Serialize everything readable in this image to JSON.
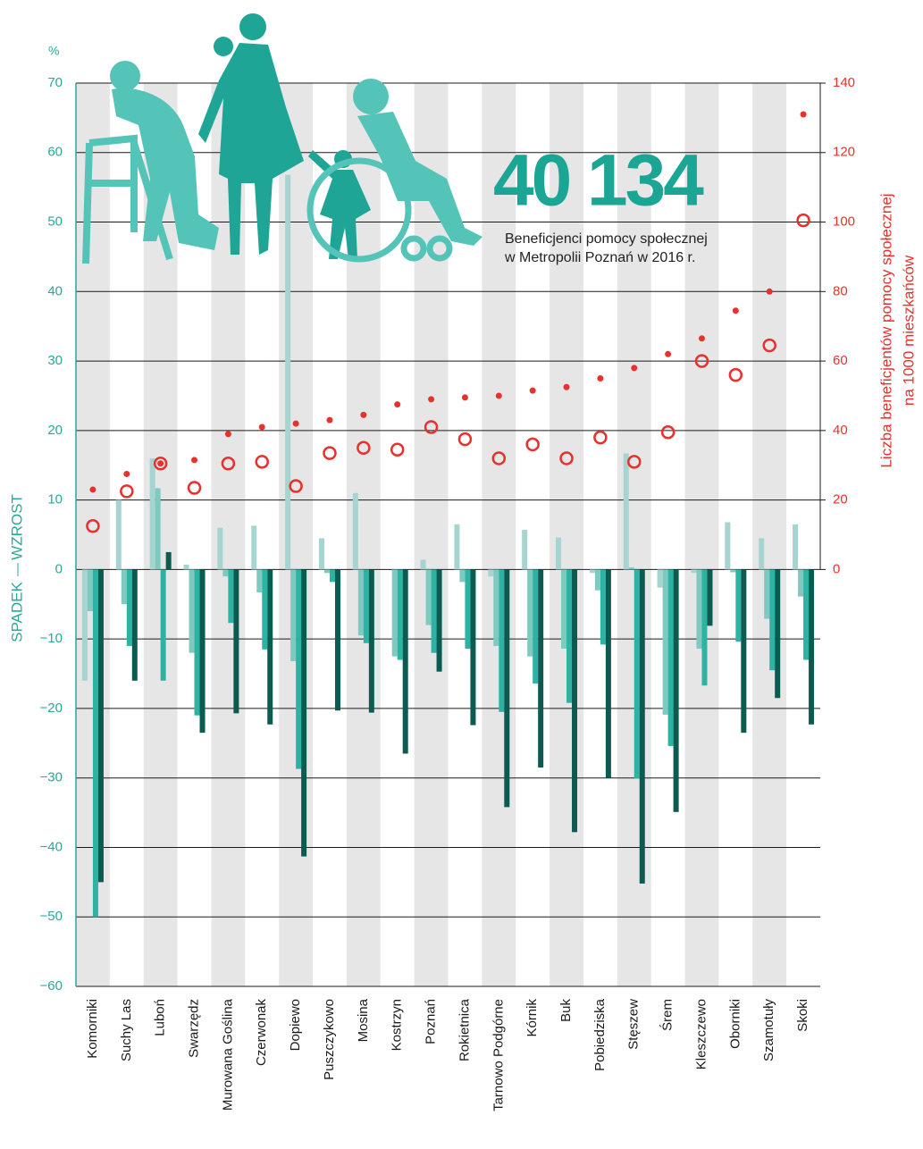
{
  "chart_data": {
    "type": "bar",
    "headline": "40 134",
    "subtitle": [
      "Beneficjenci pomocy społecznej",
      "w Metropolii Poznań w 2016 r."
    ],
    "y_unit": "%",
    "ylabel": [
      "SPADEK",
      "WZROST"
    ],
    "y2label": [
      "Liczba beneficjentów pomocy społecznej",
      "na 1000 mieszkańców"
    ],
    "categories": [
      "Komorniki",
      "Suchy Las",
      "Luboń",
      "Swarzędz",
      "Murowana Goślina",
      "Czerwonak",
      "Dopiewo",
      "Puszczykowo",
      "Mosina",
      "Kostrzyn",
      "Poznań",
      "Rokietnica",
      "Tarnowo Podgórne",
      "Kórnik",
      "Buk",
      "Pobiedziska",
      "Stęszew",
      "Śrem",
      "Kleszczewo",
      "Oborniki",
      "Szamotuły",
      "Skoki"
    ],
    "series": [
      {
        "type": "bar",
        "color": "#a6d4d0",
        "values": [
          -16,
          10,
          16,
          0.7,
          6,
          6.3,
          56.8,
          4.5,
          11,
          0,
          1.4,
          6.5,
          -1,
          5.7,
          4.6,
          -0.5,
          16.7,
          -2.6,
          -0.5,
          6.8,
          4.5,
          6.5
        ]
      },
      {
        "type": "bar",
        "color": "#7ec9c0",
        "values": [
          -6,
          -5,
          11.7,
          -12,
          -1,
          -3.3,
          -13.2,
          -0.5,
          -9.5,
          -12.5,
          -8,
          -1.8,
          -11,
          -12.5,
          -11.4,
          -3,
          0.3,
          -20.9,
          -11.4,
          -0.4,
          -7.1,
          -3.9
        ]
      },
      {
        "type": "bar",
        "color": "#2db3a3",
        "values": [
          -50,
          -11,
          -16,
          -21,
          -7.7,
          -11.5,
          -28.7,
          -1.8,
          -10.6,
          -13,
          -12,
          -11.4,
          -20.5,
          -16.4,
          -19.2,
          -10.8,
          -30.1,
          -25.4,
          -16.7,
          -10.4,
          -14.5,
          -13
        ]
      },
      {
        "type": "bar",
        "color": "#0b5b51",
        "values": [
          -45,
          -16,
          2.5,
          -23.5,
          -20.7,
          -22.3,
          -41.3,
          -20.3,
          -20.6,
          -26.5,
          -14.7,
          -22.4,
          -34.2,
          -28.5,
          -37.8,
          -30,
          -45.2,
          -34.9,
          -8.1,
          -23.5,
          -18.5,
          -22.3
        ]
      },
      {
        "type": "scatter",
        "marker": "filled",
        "axis": "y2",
        "color": "#e8312d",
        "values": [
          23,
          27.5,
          30.5,
          31.5,
          39,
          41,
          42,
          43,
          44.5,
          47.5,
          49,
          49.5,
          50,
          51.5,
          52.5,
          55,
          58,
          62,
          66.5,
          74.5,
          80,
          131
        ]
      },
      {
        "type": "scatter",
        "marker": "open",
        "axis": "y2",
        "color": "#e8312d",
        "values": [
          12.5,
          22.5,
          30.5,
          23.5,
          30.5,
          31,
          24,
          33.5,
          35,
          34.5,
          41,
          37.5,
          32,
          36,
          32,
          38,
          31,
          39.5,
          60,
          56,
          64.5,
          100.5
        ]
      }
    ],
    "ylim": [
      -60,
      70
    ],
    "yticks": [
      70,
      60,
      50,
      40,
      30,
      20,
      10,
      0,
      {
        "value": -10,
        "label": "−10"
      },
      {
        "value": -20,
        "label": "−20"
      },
      {
        "value": -30,
        "label": "−30"
      },
      {
        "value": -40,
        "label": "−40"
      },
      {
        "value": -50,
        "label": "−50"
      },
      {
        "value": -60,
        "label": "−60"
      }
    ],
    "y2lim": [
      0,
      140
    ],
    "y2ticks": [
      0,
      20,
      40,
      60,
      80,
      100,
      120,
      140
    ],
    "axis_color": "#2aa898",
    "y2_color": "#e8312d",
    "band_color": "#e6e6e7",
    "grid": true
  }
}
